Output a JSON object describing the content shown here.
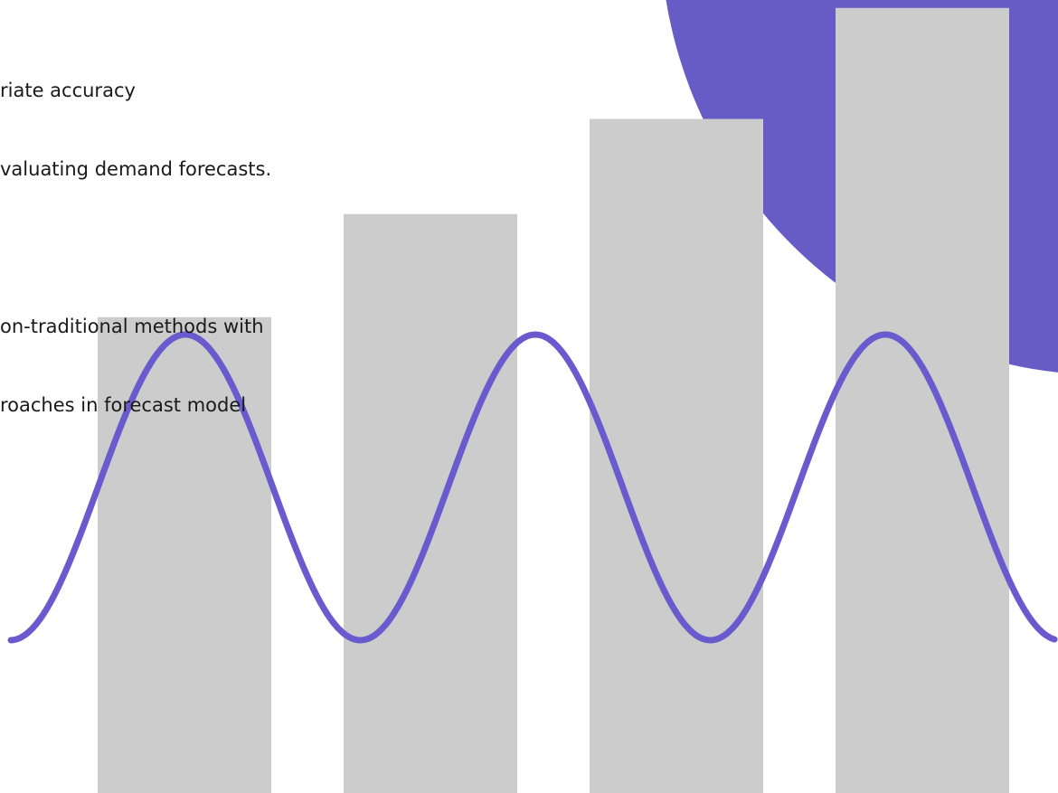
{
  "text": {
    "line1": "riate accuracy",
    "line2": "valuating demand forecasts.",
    "line3": "on-traditional methods with",
    "line4": "roaches in forecast model"
  },
  "colors": {
    "accent": "#6A5ACD",
    "circle": "#675BC6",
    "bars": "#CCCCCC",
    "text": "#1A1A1A"
  },
  "decoration": {
    "bar_levels": [
      0.6,
      0.73,
      0.85,
      0.99
    ],
    "wave_cycles": 3
  }
}
